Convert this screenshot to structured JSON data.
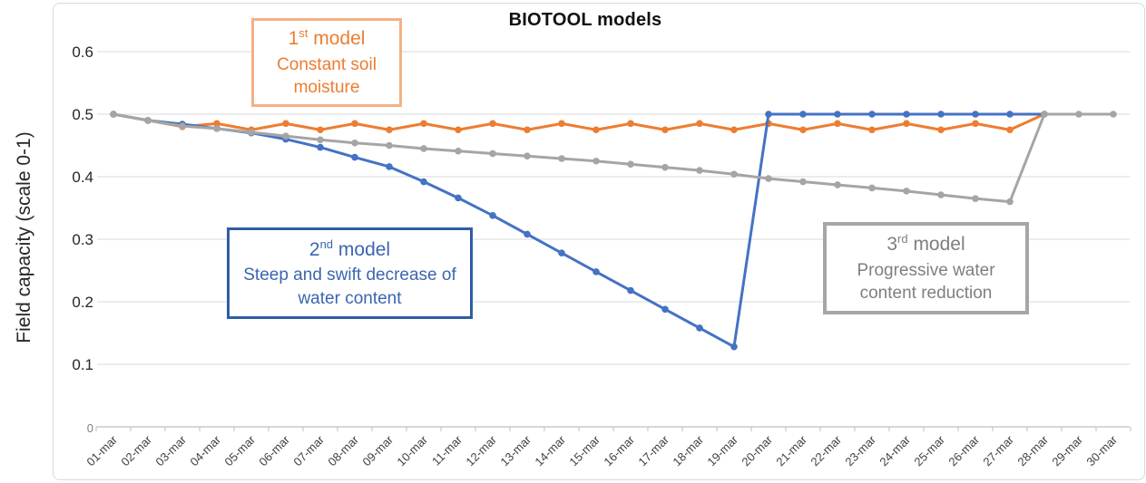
{
  "chart_data": {
    "type": "line",
    "title": "BIOTOOL models",
    "xlabel": "",
    "ylabel": "Field capacity (scale 0-1)",
    "ylim": [
      0,
      0.65
    ],
    "yticks": [
      0,
      0.1,
      0.2,
      0.3,
      0.4,
      0.5,
      0.6
    ],
    "ytick_labels": [
      "0",
      "0.1",
      "0.2",
      "0.3",
      "0.4",
      "0.5",
      "0.6"
    ],
    "grid": true,
    "legend_position": "none",
    "grid_color": "#D9D9D9",
    "axis_color": "#BFBFBF",
    "categories": [
      "01-mar",
      "02-mar",
      "03-mar",
      "04-mar",
      "05-mar",
      "06-mar",
      "07-mar",
      "08-mar",
      "09-mar",
      "10-mar",
      "11-mar",
      "12-mar",
      "13-mar",
      "14-mar",
      "15-mar",
      "16-mar",
      "17-mar",
      "18-mar",
      "19-mar",
      "20-mar",
      "21-mar",
      "22-mar",
      "23-mar",
      "24-mar",
      "25-mar",
      "26-mar",
      "27-mar",
      "28-mar",
      "29-mar",
      "30-mar"
    ],
    "series": [
      {
        "name": "1st model - Constant soil moisture",
        "color": "#ED7D31",
        "values": [
          0.5,
          0.49,
          0.48,
          0.485,
          0.475,
          0.485,
          0.475,
          0.485,
          0.475,
          0.485,
          0.475,
          0.485,
          0.475,
          0.485,
          0.475,
          0.485,
          0.475,
          0.485,
          0.475,
          0.485,
          0.475,
          0.485,
          0.475,
          0.485,
          0.475,
          0.485,
          0.475,
          0.5,
          null,
          null
        ]
      },
      {
        "name": "2nd model - Steep and swift decrease of water content",
        "color": "#4472C4",
        "values": [
          0.5,
          0.49,
          0.484,
          0.477,
          0.47,
          0.46,
          0.447,
          0.431,
          0.416,
          0.392,
          0.366,
          0.338,
          0.308,
          0.278,
          0.248,
          0.218,
          0.188,
          0.158,
          0.128,
          0.5,
          0.5,
          0.5,
          0.5,
          0.5,
          0.5,
          0.5,
          0.5,
          0.5,
          null,
          null
        ]
      },
      {
        "name": "3rd model - Progressive water content reduction",
        "color": "#A5A5A5",
        "values": [
          0.5,
          0.49,
          0.481,
          0.477,
          0.471,
          0.465,
          0.459,
          0.454,
          0.45,
          0.445,
          0.441,
          0.437,
          0.433,
          0.429,
          0.425,
          0.42,
          0.415,
          0.41,
          0.404,
          0.397,
          0.392,
          0.387,
          0.382,
          0.377,
          0.371,
          0.365,
          0.36,
          0.5,
          0.5,
          0.5
        ]
      }
    ]
  },
  "annotations": [
    {
      "num": "1",
      "ordinal": "st",
      "word": "model",
      "desc": "Constant soil moisture",
      "text_color": "#ED7D31",
      "border_color": "#F4B183"
    },
    {
      "num": "2",
      "ordinal": "nd",
      "word": "model",
      "desc": "Steep and swift decrease of water content",
      "text_color": "#3A66B0",
      "border_color": "#2E5DA6"
    },
    {
      "num": "3",
      "ordinal": "rd",
      "word": "model",
      "desc": "Progressive water content reduction",
      "text_color": "#7F7F7F",
      "border_color": "#A6A6A6"
    }
  ]
}
